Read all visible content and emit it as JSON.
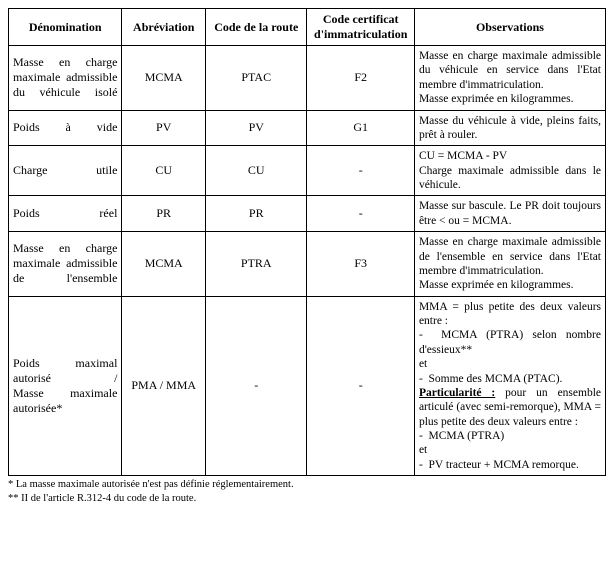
{
  "table": {
    "headers": [
      "Dénomination",
      "Abréviation",
      "Code de la route",
      "Code certificat d'immatriculation",
      "Observations"
    ],
    "col_widths_pct": [
      19,
      14,
      17,
      18,
      32
    ],
    "rows": [
      {
        "denom": "Masse en charge maximale admissible du véhicule isolé",
        "abrev": "MCMA",
        "code_route": "PTAC",
        "code_cert": "F2",
        "obs_html": "Masse en charge maximale admissible du véhicule en service dans l'Etat membre d'immatriculation.<br>Masse exprimée en kilogrammes."
      },
      {
        "denom": "Poids à vide",
        "abrev": "PV",
        "code_route": "PV",
        "code_cert": "G1",
        "obs_html": "Masse du véhicule à vide, pleins faits, prêt à rouler."
      },
      {
        "denom": "Charge utile",
        "abrev": "CU",
        "code_route": "CU",
        "code_cert": "-",
        "obs_html": "CU = MCMA - PV<br>Charge maximale admissible dans le véhicule."
      },
      {
        "denom": "Poids réel",
        "abrev": "PR",
        "code_route": "PR",
        "code_cert": "-",
        "obs_html": "Masse sur bascule. Le PR doit toujours être &lt; ou = MCMA."
      },
      {
        "denom": "Masse en charge maximale admissible de l'ensemble",
        "abrev": "MCMA",
        "code_route": "PTRA",
        "code_cert": "F3",
        "obs_html": "Masse en charge maximale admissible de l'ensemble en service dans l'Etat membre d'immatriculation.<br>Masse exprimée en kilogrammes."
      },
      {
        "denom": "Poids maximal autorisé /<br>Masse maximale autorisée*",
        "abrev": "PMA / MMA",
        "code_route": "-",
        "code_cert": "-",
        "obs_html": "MMA = plus petite des deux valeurs entre :<br>-&nbsp;&nbsp;MCMA (PTRA) selon nombre d'essieux**<br>et<br>-&nbsp;&nbsp;Somme des MCMA (PTAC).<br><span class=\"u\">Particularité :</span> pour un ensemble articulé (avec semi-remorque), MMA = plus petite des deux valeurs entre :<br>-&nbsp;&nbsp;MCMA (PTRA)<br>et<br>-&nbsp;&nbsp;PV tracteur + MCMA remorque."
      }
    ]
  },
  "footnotes": [
    "* La masse maximale autorisée n'est pas définie réglementairement.",
    "** II de l'article R.312-4 du code de la route."
  ],
  "style": {
    "font_family": "Times New Roman",
    "font_size_pt": 12,
    "border_color": "#000000",
    "background_color": "#ffffff",
    "text_color": "#000000"
  }
}
